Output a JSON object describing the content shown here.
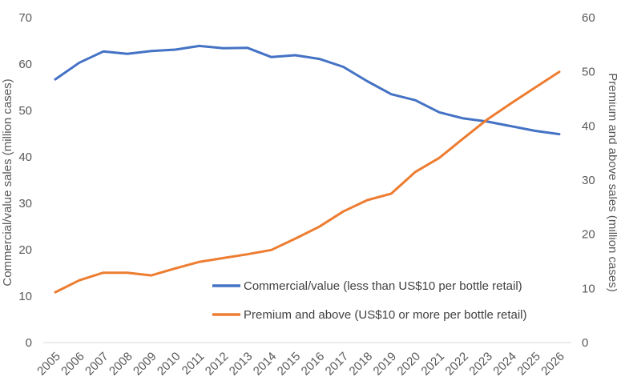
{
  "chart_data": {
    "type": "line",
    "title": "",
    "x": [
      "2005",
      "2006",
      "2007",
      "2008",
      "2009",
      "2010",
      "2011",
      "2012",
      "2013",
      "2014",
      "2015",
      "2016",
      "2017",
      "2018",
      "2019",
      "2020",
      "2021",
      "2022",
      "2023",
      "2024",
      "2025",
      "2026"
    ],
    "ylabel_left": "Commercial/value sales (million cases)",
    "ylabel_right": "Premium and above sales (million cases)",
    "ylim_left": [
      0,
      70
    ],
    "ylim_right": [
      0,
      60
    ],
    "yticks_left": [
      "0",
      "10",
      "20",
      "30",
      "40",
      "50",
      "60",
      "70"
    ],
    "yticks_right": [
      "0",
      "10",
      "20",
      "30",
      "40",
      "50",
      "60"
    ],
    "grid": false,
    "legend_position": "bottom-right (inside plot)",
    "series": [
      {
        "name": "Commercial/value (less than US$10 per bottle retail)",
        "axis": "left",
        "color": "#4472C4",
        "values": [
          56.7,
          60.3,
          62.7,
          62.2,
          62.8,
          63.1,
          63.9,
          63.4,
          63.5,
          61.5,
          61.9,
          61.1,
          59.4,
          56.3,
          53.5,
          52.2,
          49.6,
          48.3,
          47.6,
          46.6,
          45.6,
          44.9
        ]
      },
      {
        "name": "Premium and above (US$10 or more per bottle retail)",
        "axis": "right",
        "color": "#ED7D31",
        "values": [
          9.3,
          11.5,
          12.9,
          12.9,
          12.4,
          13.7,
          14.9,
          15.6,
          16.3,
          17.1,
          19.2,
          21.4,
          24.2,
          26.3,
          27.5,
          31.5,
          34.1,
          37.7,
          41.2,
          44.2,
          47.1,
          50.0
        ]
      }
    ]
  }
}
